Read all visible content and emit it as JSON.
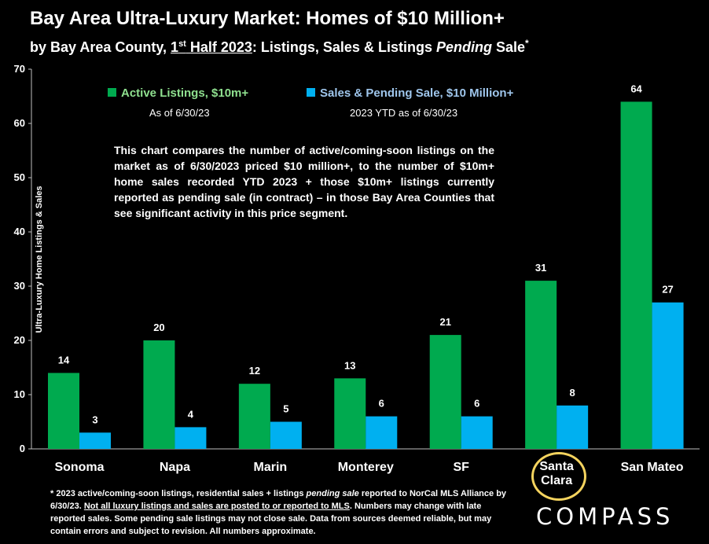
{
  "header": {
    "title": "Bay Area Ultra-Luxury Market: Homes of $10 Million+",
    "subtitle_part1": "by Bay Area County, ",
    "subtitle_ord_num": "1",
    "subtitle_ord_sup": "st",
    "subtitle_ord_rest": " Half 2023",
    "subtitle_part2": ":  Listings, Sales & Listings ",
    "subtitle_italic": "Pending",
    "subtitle_part3": " Sale",
    "subtitle_star": "*"
  },
  "legend": {
    "active_label": "Active Listings, $10m+",
    "active_sub": "As of 6/30/23",
    "sales_label": "Sales & Pending Sale, $10 Million+",
    "sales_sub": "2023 YTD as of 6/30/23"
  },
  "note": "This chart compares the number of active/coming-soon listings on the market as of 6/30/2023 priced $10 million+, to the number of $10m+ home sales recorded YTD 2023 + those $10m+ listings currently reported as pending sale (in contract) – in those Bay Area Counties that see significant activity in this price segment.",
  "footnote": {
    "part1": "* 2023 active/coming-soon listings, residential sales + listings ",
    "italic": "pending sale",
    "part2": " reported to NorCal MLS Alliance by 6/30/23. ",
    "underlined": "Not all luxury listings and sales are posted to or reported to MLS",
    "part3": ". Numbers may change with late reported sales. Some pending sale listings may not close sale. Data from sources deemed reliable, but may contain errors and subject to revision. All numbers approximate."
  },
  "brand": {
    "logo_text": "COMPASS"
  },
  "colors": {
    "active": "#00aa4f",
    "sales": "#00b0f0",
    "highlight": "#f4d35e"
  },
  "chart_data": {
    "type": "bar",
    "title": "Bay Area Ultra-Luxury Market: Homes of $10 Million+",
    "xlabel": "",
    "ylabel": "Ultra-Luxury Home Listings & Sales",
    "ylim": [
      0,
      70
    ],
    "yticks": [
      0,
      10,
      20,
      30,
      40,
      50,
      60,
      70
    ],
    "categories": [
      "Sonoma",
      "Napa",
      "Marin",
      "Monterey",
      "SF",
      "Santa Clara",
      "San Mateo"
    ],
    "series": [
      {
        "name": "Active Listings, $10m+",
        "color": "#00aa4f",
        "values": [
          14,
          20,
          12,
          13,
          21,
          31,
          64
        ]
      },
      {
        "name": "Sales & Pending Sale, $10 Million+",
        "color": "#00b0f0",
        "values": [
          3,
          4,
          5,
          6,
          6,
          8,
          27
        ]
      }
    ],
    "grid": false,
    "legend_position": "top"
  }
}
